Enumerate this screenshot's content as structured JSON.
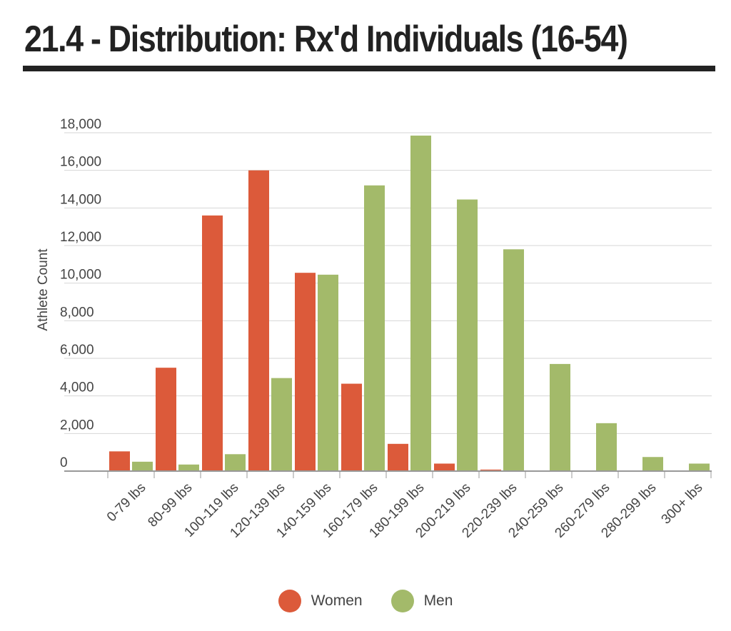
{
  "title": "21.4 - Distribution: Rx'd Individuals (16-54)",
  "colors": {
    "women": "#dc5a3a",
    "men": "#a3ba6a",
    "grid": "#d6d6d6",
    "axis": "#999999"
  },
  "chart_data": {
    "type": "bar",
    "title": "21.4 - Distribution: Rx'd Individuals (16-54)",
    "xlabel": "",
    "ylabel": "Athlete Count",
    "ylim": [
      0,
      18000
    ],
    "yticks": [
      0,
      2000,
      4000,
      6000,
      8000,
      10000,
      12000,
      14000,
      16000,
      18000
    ],
    "ytick_labels": [
      "0",
      "2,000",
      "4,000",
      "6,000",
      "8,000",
      "10,000",
      "12,000",
      "14,000",
      "16,000",
      "18,000"
    ],
    "grid": true,
    "legend_position": "bottom-center",
    "categories": [
      "0-79 lbs",
      "80-99 lbs",
      "100-119 lbs",
      "120-139 lbs",
      "140-159 lbs",
      "160-179 lbs",
      "180-199 lbs",
      "200-219 lbs",
      "220-239 lbs",
      "240-259 lbs",
      "260-279 lbs",
      "280-299 lbs",
      "300+ lbs"
    ],
    "series": [
      {
        "name": "Women",
        "color": "#dc5a3a",
        "values": [
          1050,
          5500,
          13600,
          16000,
          10550,
          4650,
          1450,
          400,
          80,
          0,
          0,
          0,
          0
        ]
      },
      {
        "name": "Men",
        "color": "#a3ba6a",
        "values": [
          500,
          350,
          900,
          4950,
          10450,
          15200,
          17850,
          14450,
          11800,
          5700,
          2550,
          750,
          400
        ]
      }
    ]
  }
}
